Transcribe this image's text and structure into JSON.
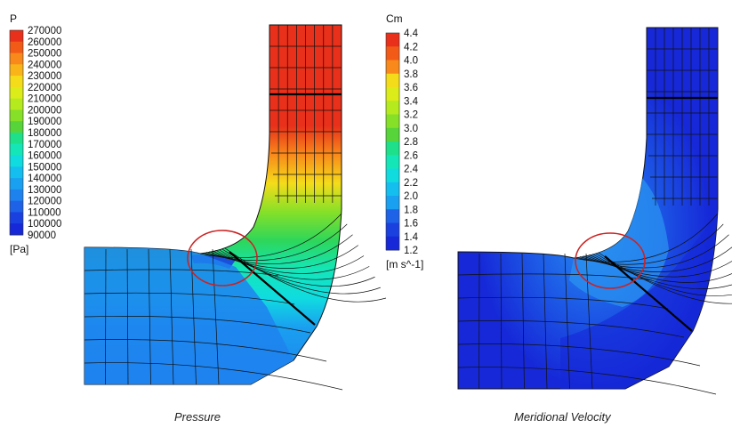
{
  "left_panel": {
    "caption": "Pressure",
    "legend": {
      "variable": "P",
      "unit": "[Pa]",
      "ticks": [
        "270000",
        "260000",
        "250000",
        "240000",
        "230000",
        "220000",
        "210000",
        "200000",
        "190000",
        "180000",
        "170000",
        "160000",
        "150000",
        "140000",
        "130000",
        "120000",
        "110000",
        "100000",
        "90000"
      ]
    }
  },
  "right_panel": {
    "caption": "Meridional Velocity",
    "legend": {
      "variable": "Cm",
      "unit": "[m s^-1]",
      "ticks": [
        "4.4",
        "4.2",
        "4.0",
        "3.8",
        "3.6",
        "3.4",
        "3.2",
        "3.0",
        "2.8",
        "2.6",
        "2.4",
        "2.2",
        "2.0",
        "1.8",
        "1.6",
        "1.4",
        "1.2"
      ]
    }
  },
  "colors": {
    "colormap": [
      "#e8301a",
      "#f25a18",
      "#f8891a",
      "#f9b41a",
      "#f5dc1a",
      "#dcec1a",
      "#b4ea1e",
      "#86e028",
      "#56d43a",
      "#2ed65a",
      "#1ee08a",
      "#14e6b8",
      "#10dce0",
      "#14bff0",
      "#1aa0f0",
      "#1e82ee",
      "#1e62e8",
      "#1a40e0",
      "#1628d8"
    ],
    "mesh_line": "#101010",
    "annotation_circle": "#cc2222",
    "interface_line": "#000000"
  }
}
